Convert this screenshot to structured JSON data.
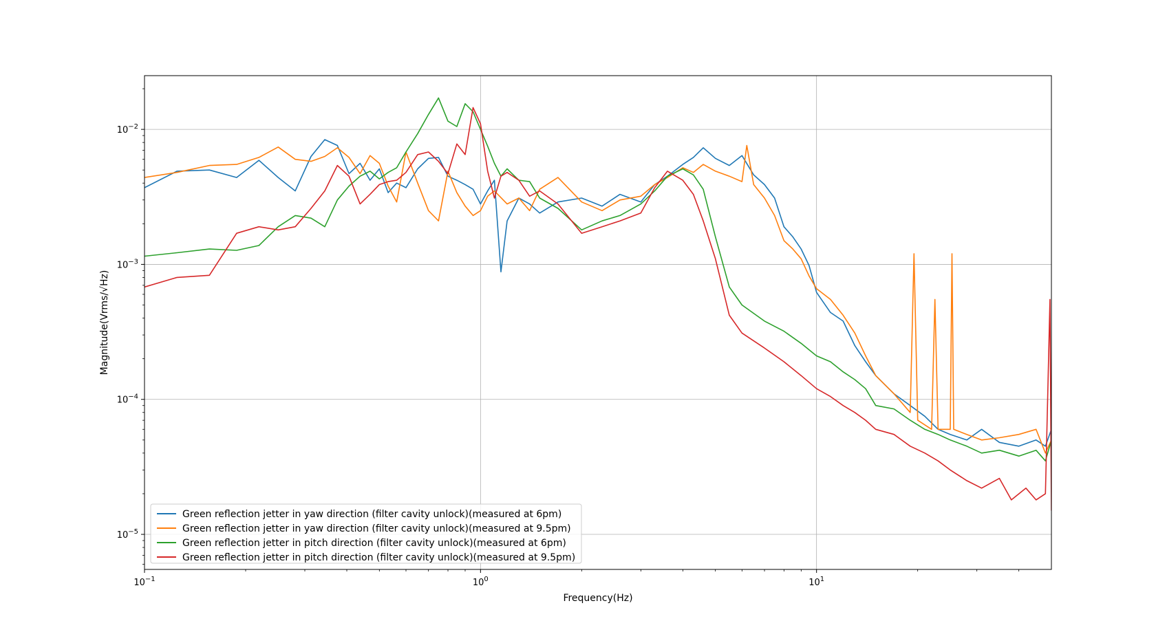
{
  "chart_data": {
    "type": "line",
    "xscale": "log",
    "yscale": "log",
    "xlabel": "Frequency(Hz)",
    "ylabel": "Magnitude(Vrms/√Hz)",
    "xlim": [
      0.1,
      50
    ],
    "ylim": [
      5.5e-06,
      0.025
    ],
    "grid": true,
    "legend_position": "lower-left",
    "xticks": [
      {
        "value": 0.1,
        "base": "10",
        "exp": "−1"
      },
      {
        "value": 1,
        "base": "10",
        "exp": "0"
      },
      {
        "value": 10,
        "base": "10",
        "exp": "1"
      }
    ],
    "yticks": [
      {
        "value": 1e-05,
        "base": "10",
        "exp": "−5"
      },
      {
        "value": 0.0001,
        "base": "10",
        "exp": "−4"
      },
      {
        "value": 0.001,
        "base": "10",
        "exp": "−3"
      },
      {
        "value": 0.01,
        "base": "10",
        "exp": "−2"
      }
    ],
    "series": [
      {
        "name": "Green reflection jetter in yaw direction (filter cavity unlock)(measured at 6pm)",
        "color": "#1f77b4",
        "x": [
          0.1,
          0.125,
          0.156,
          0.188,
          0.219,
          0.25,
          0.281,
          0.313,
          0.344,
          0.375,
          0.406,
          0.438,
          0.469,
          0.5,
          0.531,
          0.563,
          0.6,
          0.65,
          0.7,
          0.75,
          0.8,
          0.85,
          0.9,
          0.95,
          1.0,
          1.05,
          1.1,
          1.15,
          1.2,
          1.3,
          1.4,
          1.5,
          1.7,
          2.0,
          2.3,
          2.6,
          3.0,
          3.3,
          3.6,
          4.0,
          4.3,
          4.6,
          5.0,
          5.5,
          6.0,
          6.5,
          7.0,
          7.5,
          8.0,
          8.5,
          9.0,
          9.5,
          10.0,
          11.0,
          12.0,
          13.0,
          14.0,
          15.0,
          17.0,
          19.0,
          21.0,
          23.0,
          25.0,
          28.0,
          31.0,
          35.0,
          40.0,
          45.0,
          48.0,
          50.0
        ],
        "y": [
          0.0037,
          0.0049,
          0.005,
          0.0044,
          0.0059,
          0.0044,
          0.0035,
          0.0063,
          0.0084,
          0.0076,
          0.0047,
          0.0056,
          0.0042,
          0.0051,
          0.0034,
          0.004,
          0.0037,
          0.0051,
          0.0061,
          0.0062,
          0.0045,
          0.0042,
          0.0039,
          0.0036,
          0.0028,
          0.0035,
          0.0042,
          0.00088,
          0.0021,
          0.0031,
          0.0028,
          0.0024,
          0.0029,
          0.0031,
          0.0027,
          0.0033,
          0.0029,
          0.0039,
          0.0045,
          0.0055,
          0.0062,
          0.0073,
          0.0061,
          0.0054,
          0.0064,
          0.0046,
          0.0039,
          0.0031,
          0.0019,
          0.0016,
          0.0013,
          0.00098,
          0.00062,
          0.00044,
          0.00038,
          0.00025,
          0.00019,
          0.00015,
          0.00011,
          9e-05,
          7.5e-05,
          6e-05,
          5.5e-05,
          5e-05,
          6e-05,
          4.8e-05,
          4.5e-05,
          5e-05,
          4.5e-05,
          6e-05
        ]
      },
      {
        "name": "Green reflection jetter in yaw direction (filter cavity unlock)(measured at 9.5pm)",
        "color": "#ff7f0e",
        "x": [
          0.1,
          0.125,
          0.156,
          0.188,
          0.219,
          0.25,
          0.281,
          0.313,
          0.344,
          0.375,
          0.406,
          0.438,
          0.469,
          0.5,
          0.531,
          0.563,
          0.6,
          0.65,
          0.7,
          0.75,
          0.8,
          0.85,
          0.9,
          0.95,
          1.0,
          1.05,
          1.1,
          1.2,
          1.3,
          1.4,
          1.5,
          1.7,
          2.0,
          2.3,
          2.6,
          3.0,
          3.3,
          3.6,
          4.0,
          4.3,
          4.6,
          5.0,
          5.5,
          6.0,
          6.2,
          6.5,
          7.0,
          7.5,
          8.0,
          8.5,
          9.0,
          9.5,
          10.0,
          11.0,
          12.0,
          13.0,
          14.0,
          15.0,
          17.0,
          19.0,
          19.5,
          20.0,
          22.0,
          22.5,
          23.0,
          25.0,
          25.3,
          25.6,
          28.0,
          31.0,
          35.0,
          40.0,
          45.0,
          48.0,
          50.0
        ],
        "y": [
          0.0044,
          0.0048,
          0.0054,
          0.0055,
          0.0062,
          0.0074,
          0.006,
          0.0058,
          0.0063,
          0.0073,
          0.0062,
          0.0047,
          0.0064,
          0.0056,
          0.0038,
          0.0029,
          0.0068,
          0.004,
          0.0025,
          0.0021,
          0.0049,
          0.0034,
          0.0027,
          0.0023,
          0.0025,
          0.0032,
          0.0035,
          0.0028,
          0.0031,
          0.0025,
          0.0036,
          0.0044,
          0.0029,
          0.0025,
          0.003,
          0.0032,
          0.0039,
          0.0044,
          0.0052,
          0.0048,
          0.0055,
          0.0049,
          0.0045,
          0.0041,
          0.0076,
          0.0039,
          0.0031,
          0.0023,
          0.0015,
          0.0013,
          0.0011,
          0.00082,
          0.00066,
          0.00055,
          0.00042,
          0.00031,
          0.00021,
          0.00015,
          0.00011,
          8e-05,
          0.0012,
          7e-05,
          6e-05,
          0.00055,
          6e-05,
          6e-05,
          0.0012,
          6e-05,
          5.5e-05,
          5e-05,
          5.2e-05,
          5.5e-05,
          6e-05,
          4e-05,
          5e-05
        ]
      },
      {
        "name": "Green reflection jetter in pitch direction (filter cavity unlock)(measured at 6pm)",
        "color": "#2ca02c",
        "x": [
          0.1,
          0.125,
          0.156,
          0.188,
          0.219,
          0.25,
          0.281,
          0.313,
          0.344,
          0.375,
          0.406,
          0.438,
          0.469,
          0.5,
          0.531,
          0.563,
          0.6,
          0.65,
          0.7,
          0.75,
          0.8,
          0.85,
          0.9,
          0.95,
          1.0,
          1.05,
          1.1,
          1.15,
          1.2,
          1.3,
          1.4,
          1.5,
          1.7,
          2.0,
          2.3,
          2.6,
          3.0,
          3.3,
          3.6,
          4.0,
          4.3,
          4.6,
          5.0,
          5.5,
          6.0,
          7.0,
          8.0,
          9.0,
          10.0,
          11.0,
          12.0,
          13.0,
          14.0,
          15.0,
          17.0,
          19.0,
          21.0,
          23.0,
          25.0,
          28.0,
          31.0,
          35.0,
          40.0,
          45.0,
          48.0,
          50.0
        ],
        "y": [
          0.00115,
          0.00122,
          0.0013,
          0.00127,
          0.00138,
          0.0019,
          0.0023,
          0.0022,
          0.0019,
          0.003,
          0.0038,
          0.0045,
          0.0049,
          0.0043,
          0.0048,
          0.0052,
          0.0068,
          0.0093,
          0.0129,
          0.0171,
          0.0115,
          0.0105,
          0.0155,
          0.0135,
          0.01,
          0.0075,
          0.0056,
          0.0045,
          0.0051,
          0.0042,
          0.0041,
          0.0031,
          0.0026,
          0.0018,
          0.0021,
          0.0023,
          0.0028,
          0.0035,
          0.0045,
          0.0051,
          0.0046,
          0.0036,
          0.0016,
          0.00068,
          0.0005,
          0.00038,
          0.00032,
          0.00026,
          0.00021,
          0.00019,
          0.00016,
          0.00014,
          0.00012,
          9e-05,
          8.5e-05,
          7e-05,
          6e-05,
          5.5e-05,
          5e-05,
          4.5e-05,
          4e-05,
          4.2e-05,
          3.8e-05,
          4.2e-05,
          3.5e-05,
          5e-05
        ]
      },
      {
        "name": "Green reflection jetter in pitch direction (filter cavity unlock)(measured at 9.5pm)",
        "color": "#d62728",
        "x": [
          0.1,
          0.125,
          0.156,
          0.188,
          0.219,
          0.25,
          0.281,
          0.313,
          0.344,
          0.375,
          0.406,
          0.438,
          0.469,
          0.5,
          0.531,
          0.563,
          0.6,
          0.65,
          0.7,
          0.75,
          0.8,
          0.85,
          0.9,
          0.95,
          1.0,
          1.05,
          1.1,
          1.15,
          1.2,
          1.3,
          1.4,
          1.5,
          1.7,
          2.0,
          2.3,
          2.6,
          3.0,
          3.3,
          3.6,
          4.0,
          4.3,
          4.6,
          5.0,
          5.5,
          6.0,
          7.0,
          8.0,
          9.0,
          10.0,
          11.0,
          12.0,
          13.0,
          14.0,
          15.0,
          17.0,
          19.0,
          21.0,
          23.0,
          25.0,
          28.0,
          31.0,
          35.0,
          38.0,
          42.0,
          45.0,
          48.0,
          49.5,
          50.0
        ],
        "y": [
          0.00068,
          0.0008,
          0.00083,
          0.0017,
          0.0019,
          0.0018,
          0.0019,
          0.0026,
          0.0035,
          0.0054,
          0.0045,
          0.0028,
          0.0033,
          0.0039,
          0.0041,
          0.0042,
          0.0048,
          0.0065,
          0.0068,
          0.0058,
          0.0047,
          0.0078,
          0.0065,
          0.0145,
          0.011,
          0.0049,
          0.0031,
          0.0045,
          0.0048,
          0.0042,
          0.0032,
          0.0035,
          0.0028,
          0.0017,
          0.0019,
          0.0021,
          0.0024,
          0.0037,
          0.0049,
          0.0042,
          0.0033,
          0.0021,
          0.0011,
          0.00042,
          0.00031,
          0.00024,
          0.00019,
          0.00015,
          0.00012,
          0.000105,
          9e-05,
          8e-05,
          7e-05,
          6e-05,
          5.5e-05,
          4.5e-05,
          4e-05,
          3.5e-05,
          3e-05,
          2.5e-05,
          2.2e-05,
          2.6e-05,
          1.8e-05,
          2.2e-05,
          1.8e-05,
          2e-05,
          0.00055,
          1.5e-05
        ]
      }
    ]
  }
}
